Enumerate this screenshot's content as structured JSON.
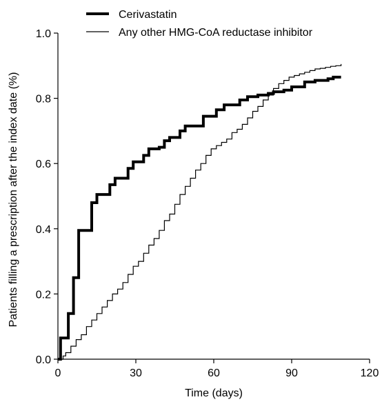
{
  "chart_data": {
    "type": "line",
    "xlabel": "Time (days)",
    "ylabel": "Patients filling a prescription after the index date (%)",
    "xlim": [
      0,
      120
    ],
    "ylim": [
      0,
      1.0
    ],
    "x_ticks": [
      0,
      30,
      60,
      90,
      120
    ],
    "y_ticks": [
      0.0,
      0.2,
      0.4,
      0.6,
      0.8,
      1.0
    ],
    "x_tick_labels": [
      "0",
      "30",
      "60",
      "90",
      "120"
    ],
    "y_tick_labels": [
      "0.0",
      "0.2",
      "0.4",
      "0.6",
      "0.8",
      "1.0"
    ],
    "grid": false,
    "legend_position": "top",
    "series": [
      {
        "name": "Cerivastatin",
        "style": "thick",
        "color": "#000000",
        "x": [
          0,
          1,
          3,
          4,
          6,
          8,
          11,
          13,
          15,
          18,
          20,
          22,
          26,
          27,
          29,
          33,
          35,
          39,
          41,
          43,
          47,
          49,
          52,
          56,
          58,
          61,
          64,
          67,
          70,
          73,
          77,
          81,
          83,
          87,
          90,
          95,
          99,
          102,
          104,
          106,
          109
        ],
        "y": [
          0.0,
          0.065,
          0.065,
          0.14,
          0.25,
          0.395,
          0.395,
          0.48,
          0.505,
          0.505,
          0.535,
          0.555,
          0.555,
          0.585,
          0.605,
          0.625,
          0.645,
          0.65,
          0.67,
          0.68,
          0.7,
          0.715,
          0.715,
          0.745,
          0.745,
          0.765,
          0.78,
          0.78,
          0.795,
          0.805,
          0.81,
          0.815,
          0.82,
          0.825,
          0.835,
          0.85,
          0.855,
          0.855,
          0.86,
          0.865,
          0.865
        ]
      },
      {
        "name": "Any other HMG-CoA reductase inhibitor",
        "style": "thin-step",
        "color": "#000000",
        "x": [
          0,
          2,
          3,
          5,
          7,
          9,
          11,
          13,
          15,
          17,
          19,
          21,
          23,
          25,
          27,
          29,
          31,
          33,
          35,
          37,
          39,
          41,
          43,
          45,
          47,
          49,
          51,
          53,
          55,
          57,
          59,
          61,
          63,
          65,
          67,
          69,
          71,
          73,
          75,
          77,
          79,
          81,
          83,
          85,
          87,
          89,
          91,
          93,
          95,
          97,
          99,
          101,
          103,
          105,
          107,
          109
        ],
        "y": [
          0.0,
          0.01,
          0.02,
          0.04,
          0.06,
          0.075,
          0.1,
          0.12,
          0.14,
          0.16,
          0.18,
          0.2,
          0.215,
          0.235,
          0.26,
          0.285,
          0.3,
          0.325,
          0.35,
          0.37,
          0.395,
          0.425,
          0.445,
          0.475,
          0.505,
          0.53,
          0.555,
          0.58,
          0.6,
          0.625,
          0.645,
          0.655,
          0.665,
          0.675,
          0.695,
          0.705,
          0.72,
          0.74,
          0.76,
          0.775,
          0.795,
          0.81,
          0.83,
          0.845,
          0.855,
          0.865,
          0.87,
          0.875,
          0.88,
          0.885,
          0.89,
          0.892,
          0.895,
          0.898,
          0.9,
          0.905
        ]
      }
    ]
  }
}
